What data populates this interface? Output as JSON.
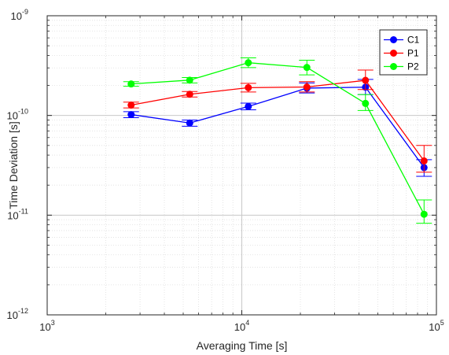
{
  "chart_data": {
    "type": "line",
    "xlabel": "Averaging Time [s]",
    "ylabel": "Time Deviation [s]",
    "xscale": "log",
    "yscale": "log",
    "xlim": [
      1000,
      100000
    ],
    "ylim": [
      1e-12,
      1e-09
    ],
    "x_ticks": [
      {
        "value": 1000,
        "base": "10",
        "exp": "3"
      },
      {
        "value": 10000,
        "base": "10",
        "exp": "4"
      },
      {
        "value": 100000,
        "base": "10",
        "exp": "5"
      }
    ],
    "y_ticks": [
      {
        "value": 1e-12,
        "base": "10",
        "exp": "-12"
      },
      {
        "value": 1e-11,
        "base": "10",
        "exp": "-11"
      },
      {
        "value": 1e-10,
        "base": "10",
        "exp": "-10"
      },
      {
        "value": 1e-09,
        "base": "10",
        "exp": "-9"
      }
    ],
    "grid": true,
    "minor_grid": true,
    "legend_position": "top-right",
    "error_bars": true,
    "series": [
      {
        "name": "C1",
        "color": "#0000ff",
        "points": [
          {
            "x": 2700,
            "y": 1.02e-10,
            "lo": 9.5e-11,
            "hi": 1.09e-10
          },
          {
            "x": 5400,
            "y": 8.4e-11,
            "lo": 7.8e-11,
            "hi": 9e-11
          },
          {
            "x": 10800,
            "y": 1.23e-10,
            "lo": 1.14e-10,
            "hi": 1.33e-10
          },
          {
            "x": 21600,
            "y": 1.88e-10,
            "lo": 1.68e-10,
            "hi": 2.12e-10
          },
          {
            "x": 43200,
            "y": 1.92e-10,
            "lo": 1.62e-10,
            "hi": 2.3e-10
          },
          {
            "x": 86400,
            "y": 3e-11,
            "lo": 2.45e-11,
            "hi": 3.6e-11
          }
        ]
      },
      {
        "name": "P1",
        "color": "#ff0000",
        "points": [
          {
            "x": 2700,
            "y": 1.27e-10,
            "lo": 1.19e-10,
            "hi": 1.36e-10
          },
          {
            "x": 5400,
            "y": 1.63e-10,
            "lo": 1.53e-10,
            "hi": 1.74e-10
          },
          {
            "x": 10800,
            "y": 1.9e-10,
            "lo": 1.72e-10,
            "hi": 2.1e-10
          },
          {
            "x": 21600,
            "y": 1.93e-10,
            "lo": 1.72e-10,
            "hi": 2.18e-10
          },
          {
            "x": 43200,
            "y": 2.25e-10,
            "lo": 1.82e-10,
            "hi": 2.85e-10
          },
          {
            "x": 86400,
            "y": 3.5e-11,
            "lo": 2.7e-11,
            "hi": 5e-11
          }
        ]
      },
      {
        "name": "P2",
        "color": "#00ff00",
        "points": [
          {
            "x": 2700,
            "y": 2.07e-10,
            "lo": 1.96e-10,
            "hi": 2.18e-10
          },
          {
            "x": 5400,
            "y": 2.26e-10,
            "lo": 2.12e-10,
            "hi": 2.4e-10
          },
          {
            "x": 10800,
            "y": 3.38e-10,
            "lo": 3.02e-10,
            "hi": 3.78e-10
          },
          {
            "x": 21600,
            "y": 3.03e-10,
            "lo": 2.55e-10,
            "hi": 3.58e-10
          },
          {
            "x": 43200,
            "y": 1.32e-10,
            "lo": 1.12e-10,
            "hi": 1.62e-10
          },
          {
            "x": 86400,
            "y": 1.02e-11,
            "lo": 8.3e-12,
            "hi": 1.42e-11
          }
        ]
      }
    ]
  }
}
